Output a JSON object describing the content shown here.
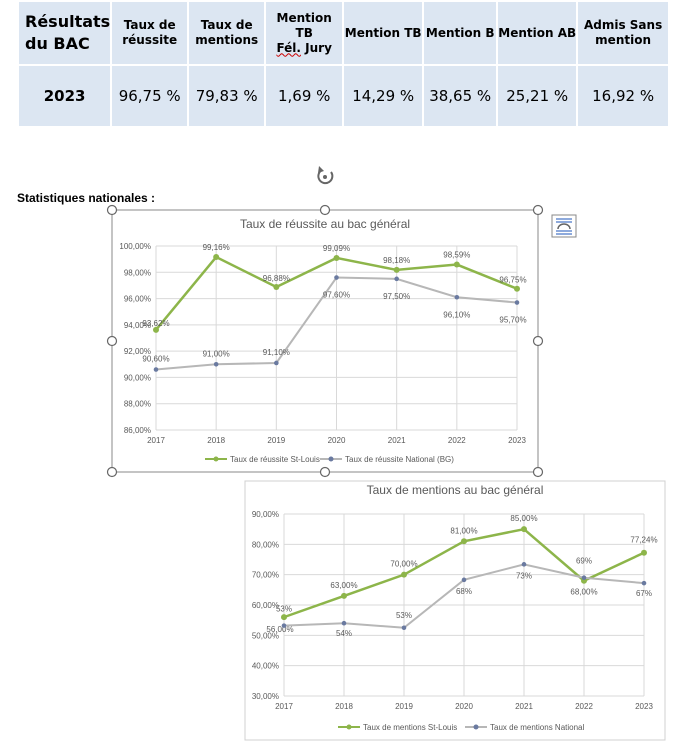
{
  "table": {
    "headers": [
      "Résultats du BAC",
      "Taux de réussite",
      "Taux de mentions",
      "Mention TB",
      "Mention TB",
      "Mention B",
      "Mention AB",
      "Admis Sans mention"
    ],
    "header_extra": {
      "fel": "Fél.",
      "jury": " Jury"
    },
    "row": [
      "2023",
      "96,75 %",
      "79,83 %",
      "1,69 %",
      "14,29 %",
      "38,65 %",
      "25,21 %",
      "16,92 %"
    ]
  },
  "section_label": "Statistiques nationales :",
  "colors": {
    "green": "#8db54a",
    "gray": "#b7b7b7",
    "gray_marker": "#6a7aa0",
    "cell": "#dce6f2"
  },
  "chart_data": [
    {
      "type": "line",
      "title": "Taux de réussite au bac général",
      "categories": [
        "2017",
        "2018",
        "2019",
        "2020",
        "2021",
        "2022",
        "2023"
      ],
      "ylim": [
        86,
        100
      ],
      "ystep": 2,
      "ytick_labels": [
        "86,00%",
        "88,00%",
        "90,00%",
        "92,00%",
        "94,00%",
        "96,00%",
        "98,00%",
        "100,00%"
      ],
      "grid": true,
      "legend": "bottom",
      "series": [
        {
          "name": "Taux de réussite St-Louis",
          "values": [
            93.62,
            99.16,
            96.88,
            99.09,
            98.18,
            98.59,
            96.75
          ],
          "labels": [
            "93,62%",
            "99,16%",
            "96,88%",
            "99,09%",
            "98,18%",
            "98,59%",
            "96,75%"
          ]
        },
        {
          "name": "Taux de réussite National (BG)",
          "values": [
            90.6,
            91.0,
            91.1,
            97.6,
            97.5,
            96.1,
            95.7
          ],
          "labels": [
            "90,60%",
            "91,00%",
            "91,10%",
            "97,60%",
            "97,50%",
            "96,10%",
            "95,70%"
          ]
        }
      ]
    },
    {
      "type": "line",
      "title": "Taux de mentions au bac général",
      "categories": [
        "2017",
        "2018",
        "2019",
        "2020",
        "2021",
        "2022",
        "2023"
      ],
      "ylim": [
        30,
        90
      ],
      "ystep": 10,
      "ytick_labels": [
        "30,00%",
        "40,00%",
        "50,00%",
        "60,00%",
        "70,00%",
        "80,00%",
        "90,00%"
      ],
      "grid": true,
      "legend": "bottom",
      "series": [
        {
          "name": "Taux de mentions St-Louis",
          "values": [
            56,
            63,
            70,
            81,
            85,
            68,
            77.24
          ],
          "labels": [
            "56,00%",
            "63,00%",
            "70,00%",
            "81,00%",
            "85,00%",
            "68,00%",
            "77,24%"
          ]
        },
        {
          "name": "Taux de mentions National",
          "values": [
            53.2,
            54,
            52.5,
            68.3,
            73.4,
            69,
            67.2
          ],
          "labels": [
            "53%",
            "54%",
            "53%",
            "68%",
            "73%",
            "69%",
            "67%"
          ]
        }
      ]
    }
  ]
}
